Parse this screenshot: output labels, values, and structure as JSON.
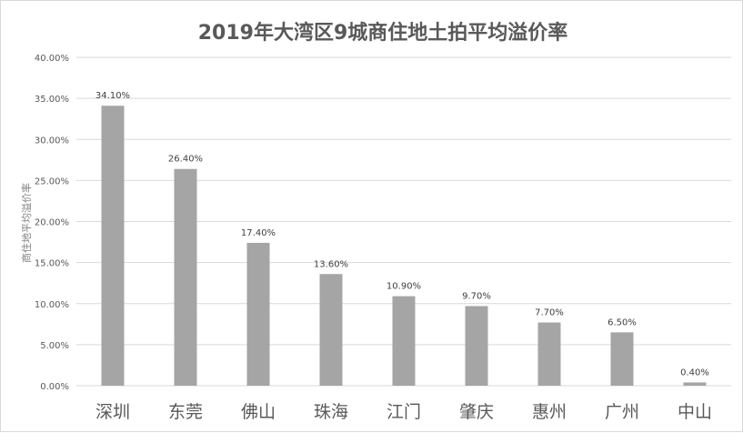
{
  "chart_data": {
    "type": "bar",
    "title": "2019年大湾区9城商住地土拍平均溢价率",
    "xlabel": "",
    "ylabel": "商住地平均溢价率",
    "categories": [
      "深圳",
      "东莞",
      "佛山",
      "珠海",
      "江门",
      "肇庆",
      "惠州",
      "广州",
      "中山"
    ],
    "values": [
      34.1,
      26.4,
      17.4,
      13.6,
      10.9,
      9.7,
      7.7,
      6.5,
      0.4
    ],
    "data_labels": [
      "34.10%",
      "26.40%",
      "17.40%",
      "13.60%",
      "10.90%",
      "9.70%",
      "7.70%",
      "6.50%",
      "0.40%"
    ],
    "ylim": [
      0,
      40
    ],
    "yticks": [
      0,
      5,
      10,
      15,
      20,
      25,
      30,
      35,
      40
    ],
    "ytick_labels": [
      "0.00%",
      "5.00%",
      "10.00%",
      "15.00%",
      "20.00%",
      "25.00%",
      "30.00%",
      "35.00%",
      "40.00%"
    ],
    "grid": true,
    "legend": "none",
    "bar_color": "#a5a5a5",
    "grid_color": "#d9d9d9"
  }
}
